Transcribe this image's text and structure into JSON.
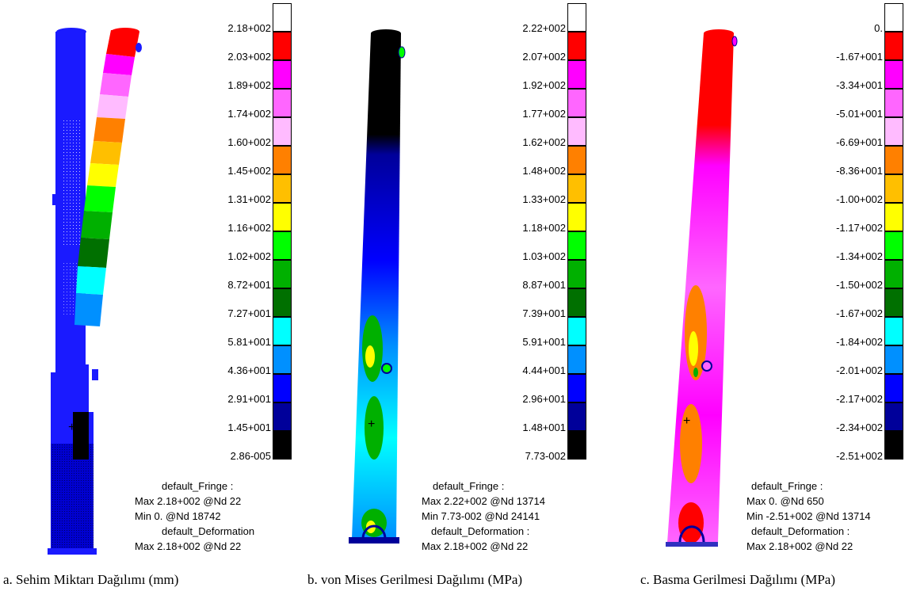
{
  "scale_colors": [
    "#ffffff",
    "#ff0000",
    "#ff00ff",
    "#ff66ff",
    "#ffbbff",
    "#ff8000",
    "#ffbf00",
    "#ffff00",
    "#00ff00",
    "#00b000",
    "#007000",
    "#00ffff",
    "#0090ff",
    "#0000ff",
    "#00009a",
    "#000000"
  ],
  "panels": [
    {
      "id": "a",
      "ticks": [
        "2.18+002",
        "2.03+002",
        "1.89+002",
        "1.74+002",
        "1.60+002",
        "1.45+002",
        "1.31+002",
        "1.16+002",
        "1.02+002",
        "8.72+001",
        "7.27+001",
        "5.81+001",
        "4.36+001",
        "2.91+001",
        "1.45+001",
        "2.86-005"
      ],
      "info": [
        "default_Fringe :",
        "Max 2.18+002 @Nd 22",
        "Min 0. @Nd 18742",
        "default_Deformation",
        "Max 2.18+002 @Nd 22"
      ],
      "caption": "a. Sehim Miktarı Dağılımı (mm)"
    },
    {
      "id": "b",
      "ticks": [
        "2.22+002",
        "2.07+002",
        "1.92+002",
        "1.77+002",
        "1.62+002",
        "1.48+002",
        "1.33+002",
        "1.18+002",
        "1.03+002",
        "8.87+001",
        "7.39+001",
        "5.91+001",
        "4.44+001",
        "2.96+001",
        "1.48+001",
        "7.73-002"
      ],
      "info": [
        "default_Fringe :",
        "Max 2.22+002 @Nd 13714",
        "Min 7.73-002 @Nd 24141",
        "default_Deformation :",
        "Max 2.18+002 @Nd 22"
      ],
      "caption": "b. von Mises Gerilmesi Dağılımı (MPa)"
    },
    {
      "id": "c",
      "ticks": [
        "0.",
        "-1.67+001",
        "-3.34+001",
        "-5.01+001",
        "-6.69+001",
        "-8.36+001",
        "-1.00+002",
        "-1.17+002",
        "-1.34+002",
        "-1.50+002",
        "-1.67+002",
        "-1.84+002",
        "-2.01+002",
        "-2.17+002",
        "-2.34+002",
        "-2.51+002"
      ],
      "info": [
        "default_Fringe :",
        "Max 0. @Nd 650",
        "Min -2.51+002 @Nd 13714",
        "default_Deformation :",
        "Max 2.18+002 @Nd 22"
      ],
      "caption": "c. Basma Gerilmesi Dağılımı (MPa)"
    }
  ]
}
